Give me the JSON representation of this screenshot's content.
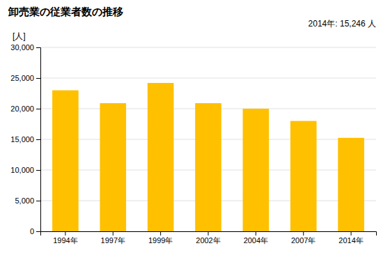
{
  "chart_data": {
    "type": "bar",
    "title": "卸売業の従業者数の推移",
    "ylabel": "[人]",
    "annotation": "2014年: 15,246 人",
    "categories": [
      "1994年",
      "1997年",
      "1999年",
      "2002年",
      "2004年",
      "2007年",
      "2014年"
    ],
    "values": [
      23000,
      20900,
      24200,
      20900,
      20000,
      18000,
      15246
    ],
    "color": "#FFC000",
    "ylim": [
      0,
      30000
    ],
    "yticks": [
      0,
      {
        "value": 5000,
        "label": "5,000"
      },
      {
        "value": 10000,
        "label": "10,000"
      },
      {
        "value": 15000,
        "label": "15,000"
      },
      {
        "value": 20000,
        "label": "20,000"
      },
      {
        "value": 25000,
        "label": "25,000"
      },
      {
        "value": 30000,
        "label": "30,000"
      }
    ],
    "grid": true
  }
}
